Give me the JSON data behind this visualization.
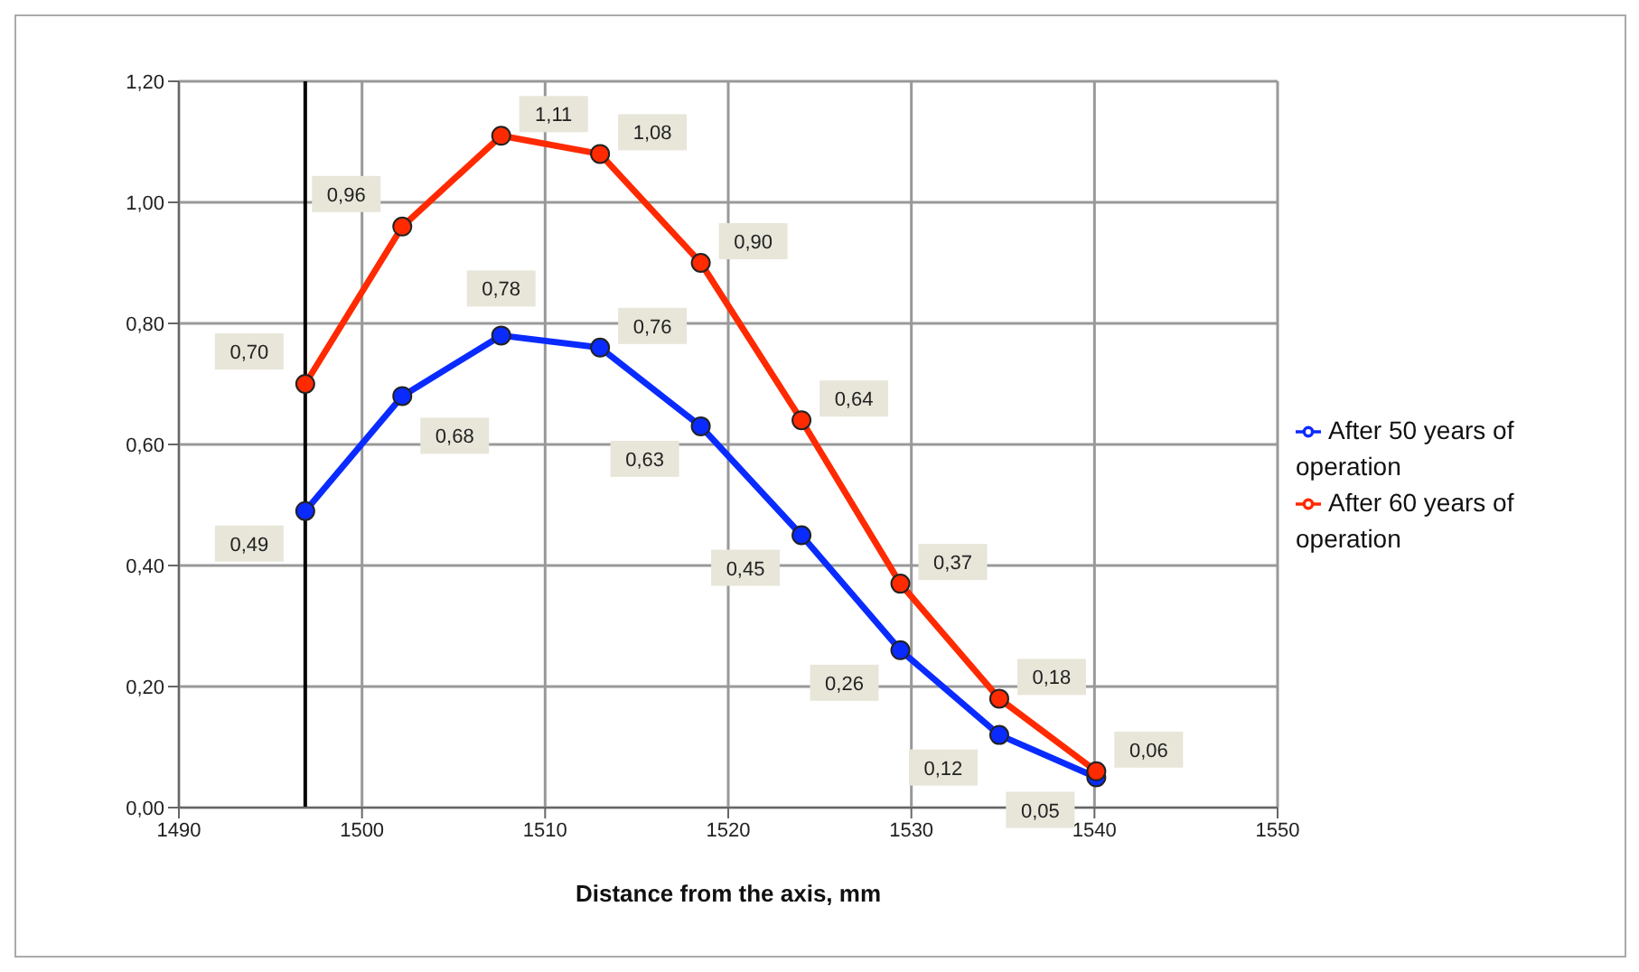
{
  "chart_data": {
    "type": "line",
    "xlabel": "Distance from the axis,  mm",
    "x": [
      1496.9,
      1502.2,
      1507.6,
      1513,
      1518.5,
      1524,
      1529.4,
      1534.8,
      1540.1
    ],
    "series": [
      {
        "name": "After 50 years of operation",
        "color": "#0a2bff",
        "values": [
          0.49,
          0.68,
          0.78,
          0.76,
          0.63,
          0.45,
          0.26,
          0.12,
          0.05
        ],
        "value_labels": [
          "0,49",
          "0,68",
          "0,78",
          "0,76",
          "0,63",
          "0,45",
          "0,26",
          "0,12",
          "0,05"
        ]
      },
      {
        "name": "After 60 years of operation",
        "color": "#ff2a00",
        "values": [
          0.7,
          0.96,
          1.11,
          1.08,
          0.9,
          0.64,
          0.37,
          0.18,
          0.06
        ],
        "value_labels": [
          "0,70",
          "0,96",
          "1,11",
          "1,08",
          "0,90",
          "0,64",
          "0,37",
          "0,18",
          "0,06"
        ]
      }
    ],
    "xlim": [
      1490,
      1550
    ],
    "xticks": [
      1490,
      1500,
      1510,
      1520,
      1530,
      1540,
      1550
    ],
    "ylim": [
      0,
      1.2
    ],
    "yticks": [
      {
        "value": 0,
        "label": "0,00"
      },
      {
        "value": 0.2,
        "label": "0,20"
      },
      {
        "value": 0.4,
        "label": "0,40"
      },
      {
        "value": 0.6,
        "label": "0,60"
      },
      {
        "value": 0.8,
        "label": "0,80"
      },
      {
        "value": 1.0,
        "label": "1,00"
      },
      {
        "value": 1.2,
        "label": "1,20"
      }
    ],
    "ref_lines": [
      {
        "axis": "x",
        "value": 1496.9,
        "color": "#000000"
      }
    ],
    "grid": true,
    "legend": "right",
    "marker": "circle",
    "line_style": "solid"
  }
}
